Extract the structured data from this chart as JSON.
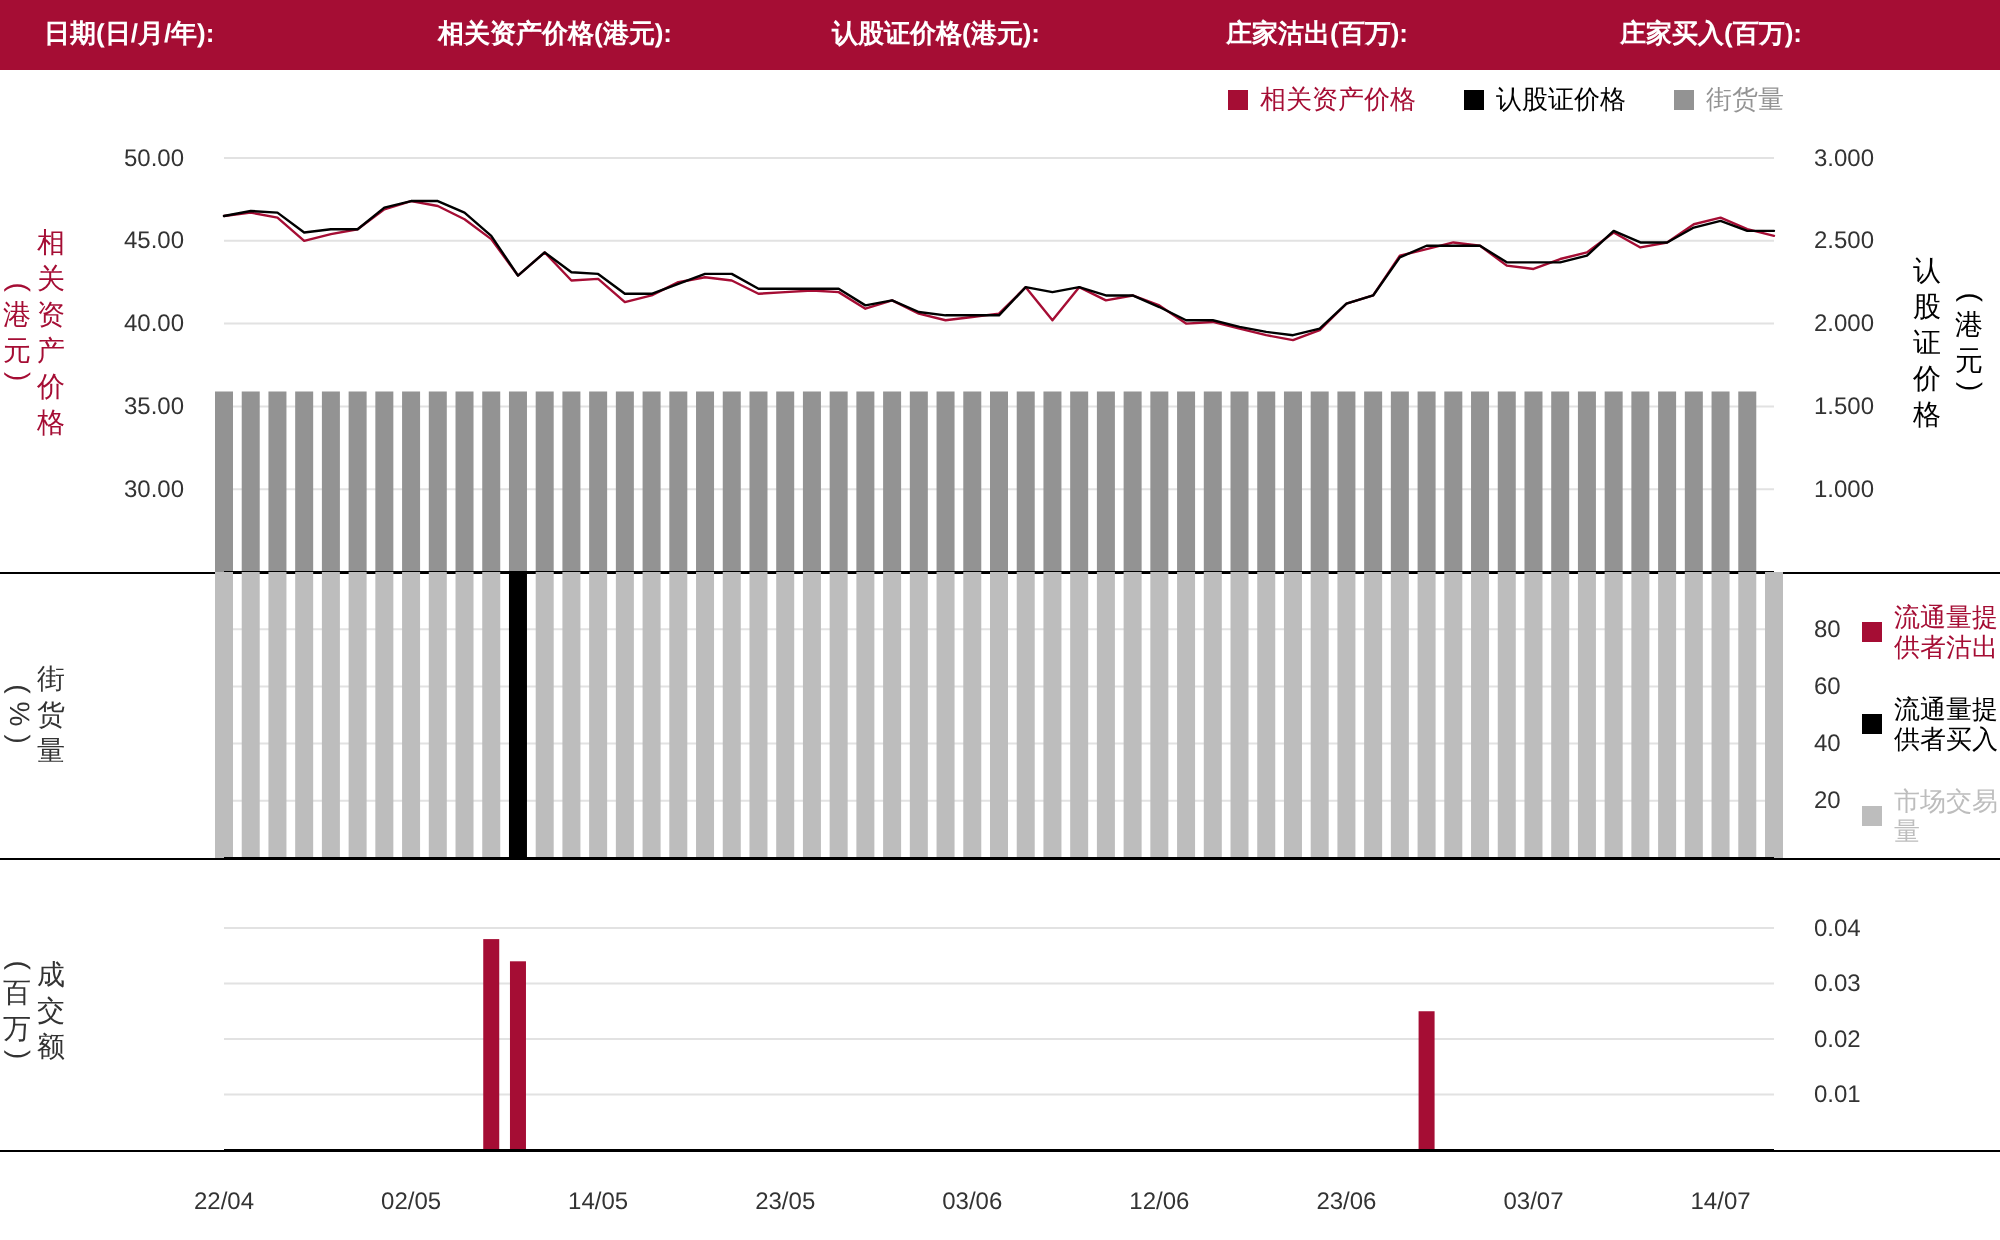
{
  "chart_data": [
    {
      "type": "line",
      "annotations": [
        "日期(日/月/年):",
        "相关资产价格(港元):",
        "认股证价格(港元):",
        "庄家沽出(百万):",
        "庄家买入(百万):"
      ],
      "categories": [
        null,
        null,
        null,
        null,
        null,
        null,
        null,
        null,
        null,
        null,
        null,
        null,
        null,
        null,
        null,
        null,
        null,
        null,
        null,
        null,
        null,
        null,
        null,
        null,
        null,
        null,
        null,
        null,
        null,
        null,
        null,
        null,
        null,
        null,
        null,
        null,
        null,
        null,
        null,
        null,
        null,
        null,
        null,
        null,
        null,
        null,
        null,
        null,
        null,
        null,
        null,
        null,
        null,
        null,
        null,
        null,
        null,
        null,
        null
      ],
      "series": [
        {
          "name": "相关资产价格",
          "color": "#a50d34",
          "values": [
            46.5,
            46.7,
            46.4,
            45.0,
            45.4,
            45.7,
            46.9,
            47.4,
            47.1,
            46.3,
            45.1,
            42.9,
            44.3,
            42.6,
            42.7,
            41.3,
            41.7,
            42.5,
            42.8,
            42.6,
            41.8,
            41.9,
            42.0,
            41.9,
            40.9,
            41.4,
            40.6,
            40.2,
            40.4,
            40.6,
            42.2,
            40.2,
            42.2,
            41.4,
            41.7,
            41.1,
            40.0,
            40.1,
            39.7,
            39.3,
            39.0,
            39.6,
            41.2,
            41.7,
            44.1,
            44.5,
            44.9,
            44.7,
            43.5,
            43.3,
            43.9,
            44.3,
            45.5,
            44.6,
            44.9,
            46.0,
            46.4,
            45.7,
            45.3
          ]
        },
        {
          "name": "认股证价格",
          "axis": "y2",
          "color": "#000000",
          "values": [
            2.65,
            2.68,
            2.67,
            2.55,
            2.57,
            2.57,
            2.7,
            2.74,
            2.74,
            2.67,
            2.53,
            2.29,
            2.43,
            2.31,
            2.3,
            2.18,
            2.18,
            2.24,
            2.3,
            2.3,
            2.21,
            2.21,
            2.21,
            2.21,
            2.11,
            2.14,
            2.07,
            2.05,
            2.05,
            2.05,
            2.22,
            2.19,
            2.22,
            2.17,
            2.17,
            2.1,
            2.02,
            2.02,
            1.98,
            1.95,
            1.93,
            1.97,
            2.12,
            2.17,
            2.4,
            2.47,
            2.47,
            2.47,
            2.37,
            2.37,
            2.37,
            2.41,
            2.56,
            2.49,
            2.49,
            2.58,
            2.62,
            2.56,
            2.56
          ]
        },
        {
          "name": "街货量",
          "type": "bar",
          "color": "#939393",
          "values": [
            35.9,
            35.9,
            35.9,
            35.9,
            35.9,
            35.9,
            35.9,
            35.9,
            35.9,
            35.9,
            35.9,
            35.9,
            35.9,
            35.9,
            35.9,
            35.9,
            35.9,
            35.9,
            35.9,
            35.9,
            35.9,
            35.9,
            35.9,
            35.9,
            35.9,
            35.9,
            35.9,
            35.9,
            35.9,
            35.9,
            35.9,
            35.9,
            35.9,
            35.9,
            35.9,
            35.9,
            35.9,
            35.9,
            35.9,
            35.9,
            35.9,
            35.9,
            35.9,
            35.9,
            35.9,
            35.9,
            35.9,
            35.9,
            35.9,
            35.9,
            35.9,
            35.9,
            35.9,
            35.9,
            35.9,
            35.9,
            35.9,
            35.9,
            null
          ]
        }
      ],
      "ylim": [
        25,
        50
      ],
      "yticks": [
        {
          "value": 30,
          "label": "30.00"
        },
        {
          "value": 35,
          "label": "35.00"
        },
        {
          "value": 40,
          "label": "40.00"
        },
        {
          "value": 45,
          "label": "45.00"
        },
        {
          "value": 50,
          "label": "50.00"
        }
      ],
      "y2lim": [
        0.5,
        3.0
      ],
      "y2ticks": [
        {
          "value": 1,
          "label": "1.000"
        },
        {
          "value": 1.5,
          "label": "1.500"
        },
        {
          "value": 2,
          "label": "2.000"
        },
        {
          "value": 2.5,
          "label": "2.500"
        },
        {
          "value": 3,
          "label": "3.000"
        }
      ],
      "ylabel": "相关资产价格(港元)",
      "y2label": "认股证价格(港元)",
      "grid": "y",
      "legend": "top right",
      "tick_labels": "y"
    },
    {
      "type": "bar",
      "stacked": true,
      "categories": [
        null,
        null,
        null,
        null,
        null,
        null,
        null,
        null,
        null,
        null,
        null,
        null,
        null,
        null,
        null,
        null,
        null,
        null,
        null,
        null,
        null,
        null,
        null,
        null,
        null,
        null,
        null,
        null,
        null,
        null,
        null,
        null,
        null,
        null,
        null,
        null,
        null,
        null,
        null,
        null,
        null,
        null,
        null,
        null,
        null,
        null,
        null,
        null,
        null,
        null,
        null,
        null,
        null,
        null,
        null,
        null,
        null,
        null,
        null
      ],
      "series": [
        {
          "name": "流通量提供者沽出",
          "color": "#a50d34",
          "values": [
            null,
            null,
            null,
            null,
            null,
            null,
            null,
            null,
            null,
            null,
            null,
            null,
            null,
            null,
            null,
            null,
            null,
            null,
            null,
            null,
            null,
            null,
            null,
            null,
            null,
            null,
            null,
            null,
            null,
            null,
            null,
            null,
            null,
            null,
            null,
            null,
            null,
            null,
            null,
            null,
            null,
            null,
            null,
            null,
            null,
            null,
            null,
            null,
            null,
            null,
            null,
            null,
            null,
            null,
            null,
            null,
            null,
            null,
            null
          ]
        },
        {
          "name": "流通量提供者买入",
          "color": "#000000",
          "values": [
            null,
            null,
            null,
            null,
            null,
            null,
            null,
            null,
            null,
            null,
            null,
            100,
            null,
            null,
            null,
            null,
            null,
            null,
            null,
            null,
            null,
            null,
            null,
            null,
            null,
            null,
            null,
            null,
            null,
            null,
            null,
            null,
            null,
            null,
            null,
            null,
            null,
            null,
            null,
            null,
            null,
            null,
            null,
            null,
            null,
            null,
            null,
            null,
            null,
            null,
            null,
            null,
            null,
            null,
            null,
            null,
            null,
            null,
            null
          ]
        },
        {
          "name": "市场交易量",
          "color": "#bdbdbd",
          "values": [
            100,
            100,
            100,
            100,
            100,
            100,
            100,
            100,
            100,
            100,
            100,
            null,
            100,
            100,
            100,
            100,
            100,
            100,
            100,
            100,
            100,
            100,
            100,
            100,
            100,
            100,
            100,
            100,
            100,
            100,
            100,
            100,
            100,
            100,
            100,
            100,
            100,
            100,
            100,
            100,
            100,
            100,
            100,
            100,
            100,
            100,
            100,
            100,
            100,
            100,
            100,
            100,
            100,
            100,
            100,
            100,
            100,
            100,
            100
          ]
        }
      ],
      "ylim": [
        0,
        100
      ],
      "yticks": [
        20,
        40,
        60,
        80
      ],
      "ylabel": "街货量(%)",
      "grid": "y",
      "legend": "right",
      "tick_labels": "y"
    },
    {
      "type": "bar",
      "categories": [
        "22/04",
        null,
        null,
        null,
        null,
        null,
        null,
        "02/05",
        null,
        null,
        null,
        null,
        null,
        null,
        "14/05",
        null,
        null,
        null,
        null,
        null,
        null,
        "23/05",
        null,
        null,
        null,
        null,
        null,
        null,
        "03/06",
        null,
        null,
        null,
        null,
        null,
        null,
        "12/06",
        null,
        null,
        null,
        null,
        null,
        null,
        "23/06",
        null,
        null,
        null,
        null,
        null,
        null,
        "03/07",
        null,
        null,
        null,
        null,
        null,
        null,
        "14/07",
        null,
        null
      ],
      "series": [
        {
          "color": "#a50d34",
          "values": [
            null,
            null,
            null,
            null,
            null,
            null,
            null,
            null,
            null,
            null,
            0.038,
            0.034,
            null,
            null,
            null,
            null,
            null,
            null,
            null,
            null,
            null,
            null,
            null,
            null,
            null,
            null,
            null,
            null,
            null,
            null,
            null,
            null,
            null,
            null,
            null,
            null,
            null,
            null,
            null,
            null,
            null,
            null,
            null,
            null,
            null,
            0.025,
            null,
            null,
            null,
            null,
            null,
            null,
            null,
            null,
            null,
            null,
            null,
            null,
            null
          ]
        }
      ],
      "ylim": [
        0,
        0.04
      ],
      "yticks": [
        0.01,
        0.02,
        0.03,
        0.04
      ],
      "ylabel": "成交额(百万)",
      "grid": "y"
    }
  ]
}
